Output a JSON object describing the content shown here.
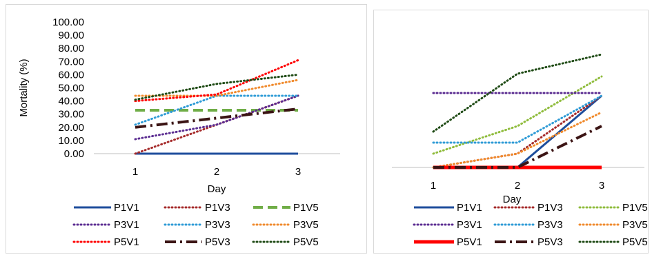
{
  "chart_data": [
    {
      "type": "line",
      "xlabel": "Day",
      "ylabel": "Mortality (%)",
      "x": [
        1,
        2,
        3
      ],
      "ylim": [
        0,
        100
      ],
      "yticks": [
        "0.00",
        "10.00",
        "20.00",
        "30.00",
        "40.00",
        "50.00",
        "60.00",
        "70.00",
        "80.00",
        "90.00",
        "100.00"
      ],
      "xticks": [
        "1",
        "2",
        "3"
      ],
      "grid": false,
      "legend_position": "bottom",
      "series": [
        {
          "name": "P1V1",
          "values": [
            0,
            0,
            0
          ],
          "color": "#1f4e9c",
          "style": "solid"
        },
        {
          "name": "P1V3",
          "values": [
            0,
            22,
            44
          ],
          "color": "#a52a2a",
          "style": "dotted"
        },
        {
          "name": "P1V5",
          "values": [
            33,
            33,
            33
          ],
          "color": "#70ad47",
          "style": "dashed"
        },
        {
          "name": "P3V1",
          "values": [
            11,
            22,
            44
          ],
          "color": "#5b2c91",
          "style": "dotted"
        },
        {
          "name": "P3V3",
          "values": [
            22,
            44,
            44
          ],
          "color": "#2e9bd6",
          "style": "dotted"
        },
        {
          "name": "P3V5",
          "values": [
            44,
            44,
            56
          ],
          "color": "#f08a2c",
          "style": "dotted"
        },
        {
          "name": "P5V1",
          "values": [
            40,
            45,
            71
          ],
          "color": "#ff0000",
          "style": "dotted"
        },
        {
          "name": "P5V3",
          "values": [
            20,
            27,
            34
          ],
          "color": "#3b1414",
          "style": "longdashdot"
        },
        {
          "name": "P5V5",
          "values": [
            41,
            53,
            60
          ],
          "color": "#1e4a14",
          "style": "dotted"
        }
      ]
    },
    {
      "type": "line",
      "xlabel": "Day",
      "ylabel": "",
      "x": [
        1,
        2,
        3
      ],
      "ylim": [
        0,
        50
      ],
      "xticks": [
        "1",
        "2",
        "3"
      ],
      "grid": false,
      "legend_position": "bottom",
      "series": [
        {
          "name": "P1V1",
          "values": [
            0,
            0,
            26
          ],
          "color": "#1f4e9c",
          "style": "solid"
        },
        {
          "name": "P1V3",
          "values": [
            0,
            5,
            26
          ],
          "color": "#a52a2a",
          "style": "dotted"
        },
        {
          "name": "P1V5",
          "values": [
            5,
            15,
            33
          ],
          "color": "#8fbc3c",
          "style": "dotted"
        },
        {
          "name": "P3V1",
          "values": [
            27,
            27,
            27
          ],
          "color": "#5b2c91",
          "style": "dotted"
        },
        {
          "name": "P3V3",
          "values": [
            9,
            9,
            26
          ],
          "color": "#2e9bd6",
          "style": "dotted"
        },
        {
          "name": "P3V5",
          "values": [
            0,
            5,
            20
          ],
          "color": "#f08a2c",
          "style": "dotted"
        },
        {
          "name": "P5V1",
          "values": [
            0,
            0,
            0
          ],
          "color": "#ff0000",
          "style": "thick"
        },
        {
          "name": "P5V3",
          "values": [
            0,
            0,
            15
          ],
          "color": "#3b1414",
          "style": "longdashdot"
        },
        {
          "name": "P5V5",
          "values": [
            13,
            34,
            41
          ],
          "color": "#1e4a14",
          "style": "dotted"
        }
      ]
    }
  ]
}
